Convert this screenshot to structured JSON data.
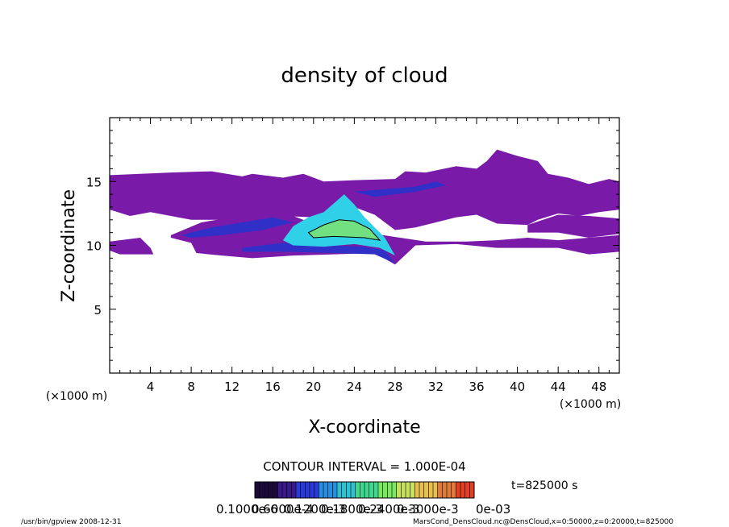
{
  "chart_data": {
    "type": "heatmap",
    "title": "density of cloud",
    "xlabel": "X-coordinate",
    "ylabel": "Z-coordinate",
    "x_unit_left": "(×1000 m)",
    "x_unit_right": "(×1000 m)",
    "xlim": [
      0,
      50
    ],
    "ylim": [
      0,
      20
    ],
    "x_ticks": [
      4,
      8,
      12,
      16,
      20,
      24,
      28,
      32,
      36,
      40,
      44,
      48
    ],
    "y_ticks": [
      5,
      10,
      15
    ],
    "contour_interval_label": "CONTOUR INTERVAL = 1.000E-04",
    "time_label": "t=825000 s",
    "colorbar_labels": [
      "0.1000e-6",
      "0.6000e-4",
      "0.1200e-3",
      "0.1800e-3",
      "0.2400e-3",
      "0.3000e-3"
    ],
    "colorbar_tail": "0e-03",
    "colorbar_colors": [
      "#1e0a3a",
      "#3a1a8a",
      "#2a3ad8",
      "#2a8ee0",
      "#30c0d0",
      "#40d890",
      "#7ae860",
      "#c8e060",
      "#e8c050",
      "#e07a3a",
      "#e04020"
    ],
    "cloud_layers": [
      {
        "name": "upper-band",
        "x_range": [
          0,
          50
        ],
        "z_range": [
          12.3,
          16.5
        ],
        "level": "low"
      },
      {
        "name": "lower-band",
        "x_range": [
          0,
          50
        ],
        "z_range": [
          9.2,
          11.2
        ],
        "level": "low"
      },
      {
        "name": "core",
        "x_center": 22.5,
        "z_center": 11.0,
        "level": "high"
      }
    ]
  },
  "footer": {
    "left": "/usr/bin/gpview   2008-12-31",
    "right": "MarsCond_DensCloud.nc@DensCloud,x=0:50000,z=0:20000,t=825000"
  },
  "colors": {
    "cloud_base": "#7a1aa8",
    "cloud_mid": "#3030c8",
    "cloud_high": "#30d0e8",
    "cloud_peak": "#70e080"
  }
}
